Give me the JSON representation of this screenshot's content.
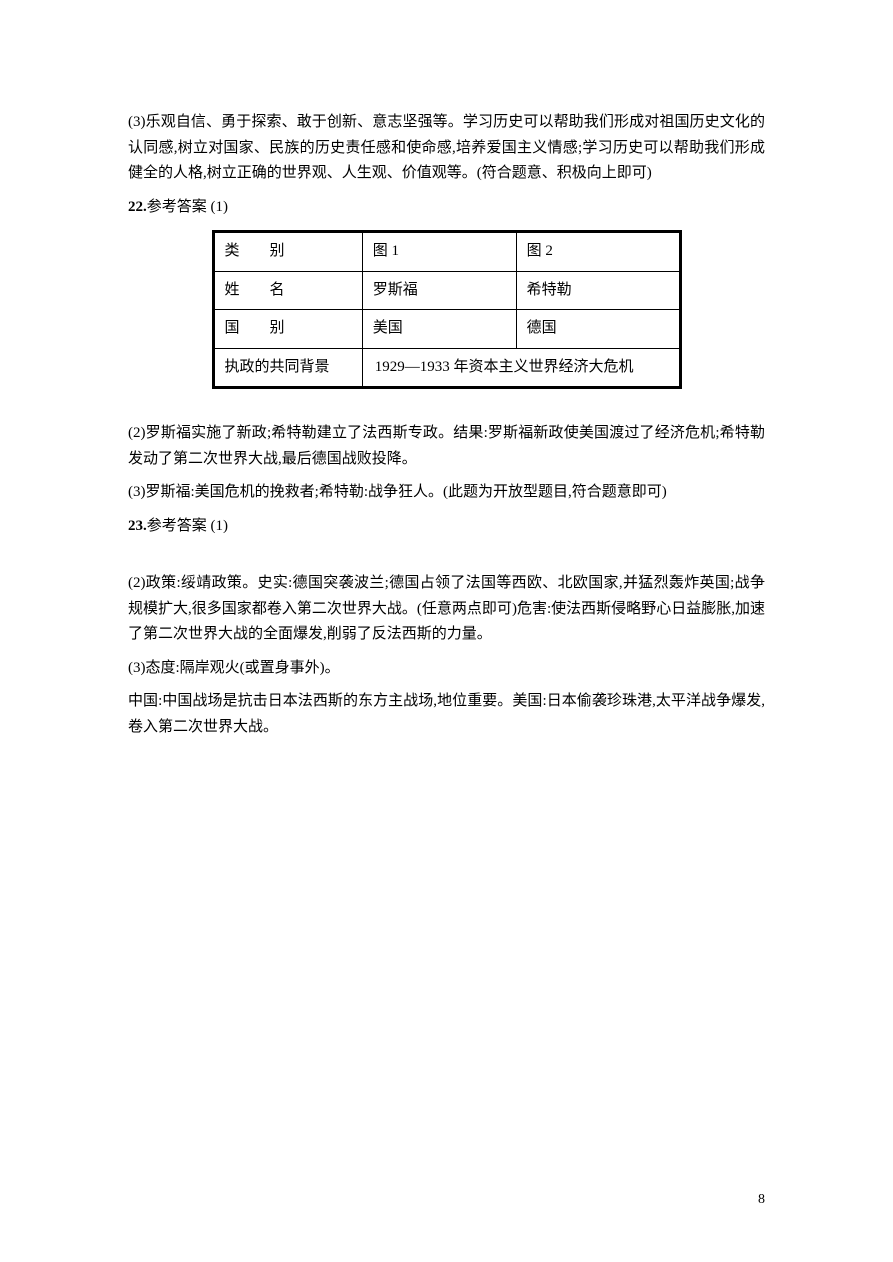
{
  "p1": "(3)乐观自信、勇于探索、敢于创新、意志坚强等。学习历史可以帮助我们形成对祖国历史文化的认同感,树立对国家、民族的历史责任感和使命感,培养爱国主义情感;学习历史可以帮助我们形成健全的人格,树立正确的世界观、人生观、价值观等。(符合题意、积极向上即可)",
  "q22_num": "22.",
  "q22_label": "参考答案 (1)",
  "table": {
    "rows": [
      {
        "c1_pre": "类",
        "c1_post": "别",
        "c2": "图 1",
        "c3": "图 2"
      },
      {
        "c1_pre": "姓",
        "c1_post": "名",
        "c2": "罗斯福",
        "c3": "希特勒"
      },
      {
        "c1_pre": "国",
        "c1_post": "别",
        "c2": "美国",
        "c3": "德国"
      },
      {
        "c1": "执政的共同背景",
        "merged": " 1929—1933 年资本主义世界经济大危机"
      }
    ]
  },
  "p2": "(2)罗斯福实施了新政;希特勒建立了法西斯专政。结果:罗斯福新政使美国渡过了经济危机;希特勒发动了第二次世界大战,最后德国战败投降。",
  "p3": "(3)罗斯福:美国危机的挽救者;希特勒:战争狂人。(此题为开放型题目,符合题意即可)",
  "q23_num": "23.",
  "q23_label": "参考答案 (1)",
  "p4": "(2)政策:绥靖政策。史实:德国突袭波兰;德国占领了法国等西欧、北欧国家,并猛烈轰炸英国;战争规模扩大,很多国家都卷入第二次世界大战。(任意两点即可)危害:使法西斯侵略野心日益膨胀,加速了第二次世界大战的全面爆发,削弱了反法西斯的力量。",
  "p5": "(3)态度:隔岸观火(或置身事外)。",
  "p6": "中国:中国战场是抗击日本法西斯的东方主战场,地位重要。美国:日本偷袭珍珠港,太平洋战争爆发,卷入第二次世界大战。",
  "page_number": "8"
}
